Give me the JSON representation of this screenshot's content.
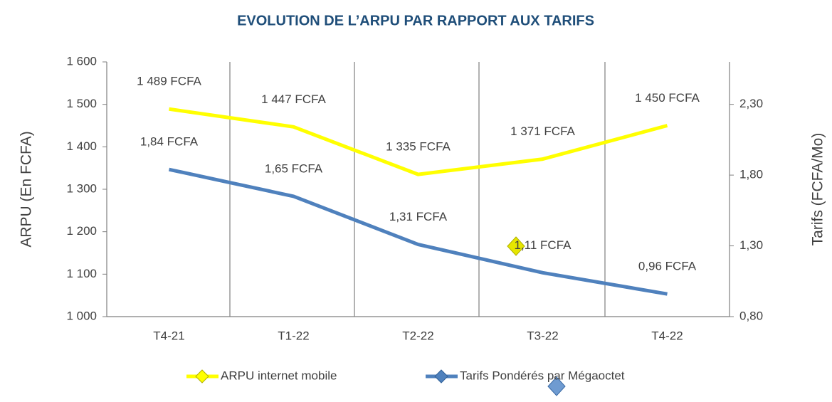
{
  "chart_data": {
    "type": "line",
    "title": "EVOLUTION DE L’ARPU PAR RAPPORT AUX TARIFS",
    "y_label": "ARPU (En FCFA)",
    "y2_label": "Tarifs (FCFA/Mo)",
    "categories": [
      "T4-21",
      "T1-22",
      "T2-22",
      "T3-22",
      "T4-22"
    ],
    "series": [
      {
        "name": "ARPU internet mobile",
        "color": "#ffff00",
        "values": [
          1489,
          1447,
          1335,
          1371,
          1450
        ],
        "value_labels": [
          "1 489 FCFA",
          "1 447 FCFA",
          "1 335 FCFA",
          "1 371 FCFA",
          "1 450 FCFA"
        ]
      },
      {
        "name": "Tarifs Pondérés par Mégaoctet",
        "color": "#4f81bd",
        "axis": "y2",
        "values": [
          1.84,
          1.65,
          1.31,
          1.11,
          0.96
        ],
        "value_labels": [
          "1,84 FCFA",
          "1,65 FCFA",
          "1,31 FCFA",
          "1,11 FCFA",
          "0,96 FCFA"
        ]
      }
    ],
    "ylim": [
      1000,
      1600
    ],
    "yticks": [
      {
        "value": 1000,
        "label": "1 000"
      },
      {
        "value": 1100,
        "label": "1 100"
      },
      {
        "value": 1200,
        "label": "1 200"
      },
      {
        "value": 1300,
        "label": "1 300"
      },
      {
        "value": 1400,
        "label": "1 400"
      },
      {
        "value": 1500,
        "label": "1 500"
      },
      {
        "value": 1600,
        "label": "1 600"
      }
    ],
    "y2lim": [
      0.8,
      2.6
    ],
    "y2ticks": [
      {
        "value": 0.8,
        "label": "0,80"
      },
      {
        "value": 1.3,
        "label": "1,30"
      },
      {
        "value": 1.8,
        "label": "1,80"
      },
      {
        "value": 2.3,
        "label": "2,30"
      }
    ],
    "legend": "bottom"
  }
}
